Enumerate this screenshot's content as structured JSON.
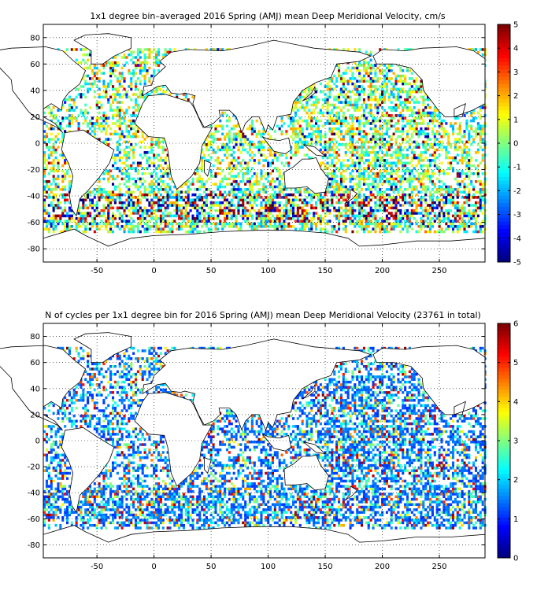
{
  "chart_data": [
    {
      "type": "heatmap",
      "title": "1x1 degree bin–averaged 2016 Spring (AMJ) mean Deep Meridional Velocity, cm/s",
      "xlabel": "",
      "ylabel": "",
      "xlim": [
        -97,
        290
      ],
      "ylim": [
        -90,
        90
      ],
      "x_ticks": [
        -50,
        0,
        50,
        100,
        150,
        200,
        250
      ],
      "y_ticks": [
        -80,
        -60,
        -40,
        -20,
        0,
        20,
        40,
        60,
        80
      ],
      "grid": true,
      "colorbar": {
        "min": -5,
        "max": 5,
        "ticks": [
          -5,
          -4,
          -3,
          -2,
          -1,
          0,
          1,
          2,
          3,
          4,
          5
        ],
        "colormap": "jet"
      }
    },
    {
      "type": "heatmap",
      "title": "N of cycles per 1x1 degree bin for 2016 Spring (AMJ) mean Deep Meridional Velocity (23761 in total)",
      "xlabel": "",
      "ylabel": "",
      "xlim": [
        -97,
        290
      ],
      "ylim": [
        -90,
        90
      ],
      "x_ticks": [
        -50,
        0,
        50,
        100,
        150,
        200,
        250
      ],
      "y_ticks": [
        -80,
        -60,
        -40,
        -20,
        0,
        20,
        40,
        60,
        80
      ],
      "grid": true,
      "colorbar": {
        "min": 0,
        "max": 6,
        "ticks": [
          0,
          1,
          2,
          3,
          4,
          5,
          6
        ],
        "colormap": "jet"
      }
    }
  ]
}
